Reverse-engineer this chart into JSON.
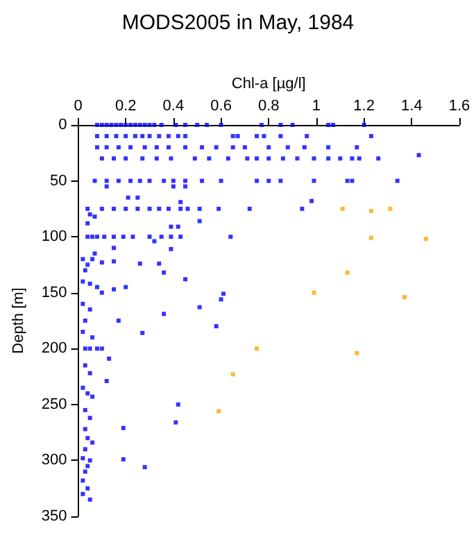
{
  "chart_data": {
    "type": "scatter",
    "title": "MODS2005 in May, 1984",
    "xlabel": "Chl-a [µg/l]",
    "ylabel": "Depth [m]",
    "xlim": [
      0,
      1.6
    ],
    "xticks": [
      0,
      0.2,
      0.4,
      0.6,
      0.8,
      1,
      1.2,
      1.4,
      1.6
    ],
    "ylim": [
      350,
      0
    ],
    "yticks": [
      0,
      50,
      100,
      150,
      200,
      250,
      300,
      350
    ],
    "marker": "square",
    "grid": false,
    "series": [
      {
        "color": "#0000ff",
        "x": [
          0.08,
          0.1,
          0.12,
          0.14,
          0.16,
          0.18,
          0.2,
          0.22,
          0.24,
          0.26,
          0.28,
          0.3,
          0.32,
          0.35,
          0.41,
          0.45,
          0.5,
          0.54,
          0.6,
          0.77,
          0.85,
          0.9,
          1.05,
          1.07,
          1.2,
          0.08,
          0.12,
          0.16,
          0.2,
          0.24,
          0.27,
          0.3,
          0.34,
          0.38,
          0.42,
          0.45,
          0.65,
          0.67,
          0.75,
          0.78,
          0.85,
          0.96,
          1.23,
          0.08,
          0.12,
          0.17,
          0.22,
          0.28,
          0.33,
          0.38,
          0.45,
          0.52,
          0.58,
          0.65,
          0.7,
          0.8,
          0.88,
          0.95,
          1.05,
          1.17,
          0.1,
          0.15,
          0.2,
          0.27,
          0.33,
          0.39,
          0.49,
          0.55,
          0.63,
          0.71,
          0.75,
          0.8,
          0.86,
          0.92,
          0.99,
          1.05,
          1.1,
          1.15,
          1.18,
          1.26,
          1.43,
          0.07,
          0.12,
          0.17,
          0.22,
          0.26,
          0.3,
          0.36,
          0.4,
          0.45,
          0.52,
          0.6,
          0.75,
          0.8,
          0.85,
          0.99,
          1.13,
          1.15,
          1.34,
          0.12,
          0.4,
          0.45,
          0.04,
          0.1,
          0.15,
          0.2,
          0.25,
          0.3,
          0.34,
          0.38,
          0.43,
          0.46,
          0.51,
          0.59,
          0.72,
          0.94,
          0.98,
          0.21,
          0.25,
          0.43,
          0.05,
          0.07,
          0.04,
          0.51,
          0.39,
          0.42,
          0.04,
          0.06,
          0.08,
          0.11,
          0.15,
          0.19,
          0.23,
          0.3,
          0.35,
          0.39,
          0.43,
          0.64,
          0.32,
          0.39,
          0.15,
          0.07,
          0.02,
          0.04,
          0.06,
          0.1,
          0.15,
          0.26,
          0.34,
          0.36,
          0.03,
          0.02,
          0.05,
          0.08,
          0.1,
          0.15,
          0.2,
          0.45,
          0.61,
          0.6,
          0.51,
          0.36,
          0.17,
          0.58,
          0.27,
          0.02,
          0.05,
          0.03,
          0.02,
          0.06,
          0.03,
          0.05,
          0.08,
          0.1,
          0.13,
          0.03,
          0.05,
          0.12,
          0.02,
          0.04,
          0.06,
          0.42,
          0.03,
          0.05,
          0.41,
          0.19,
          0.03,
          0.04,
          0.06,
          0.03,
          0.02,
          0.05,
          0.19,
          0.28,
          0.04,
          0.03,
          0.02,
          0.04,
          0.02,
          0.05
        ],
        "values": [
          0,
          0,
          0,
          0,
          0,
          0,
          0,
          0,
          0,
          0,
          0,
          0,
          0,
          0,
          0,
          0,
          0,
          0,
          0,
          0,
          0,
          0,
          0,
          0,
          0,
          10,
          10,
          10,
          10,
          10,
          10,
          10,
          10,
          10,
          10,
          10,
          10,
          10,
          10,
          10,
          10,
          10,
          10,
          20,
          20,
          20,
          20,
          20,
          20,
          20,
          20,
          20,
          20,
          20,
          20,
          20,
          20,
          20,
          20,
          20,
          30,
          30,
          30,
          30,
          30,
          30,
          30,
          30,
          30,
          30,
          30,
          30,
          30,
          30,
          30,
          30,
          30,
          30,
          30,
          30,
          27,
          50,
          50,
          50,
          50,
          50,
          50,
          50,
          50,
          50,
          50,
          50,
          50,
          50,
          50,
          50,
          50,
          50,
          50,
          55,
          55,
          55,
          75,
          75,
          75,
          75,
          75,
          75,
          75,
          75,
          75,
          75,
          75,
          75,
          75,
          75,
          68,
          65,
          65,
          69,
          80,
          82,
          88,
          86,
          91,
          91,
          100,
          100,
          100,
          100,
          100,
          100,
          100,
          100,
          100,
          100,
          100,
          100,
          104,
          111,
          110,
          115,
          120,
          125,
          120,
          123,
          122,
          124,
          124,
          132,
          130,
          140,
          142,
          145,
          150,
          147,
          145,
          138,
          151,
          156,
          163,
          169,
          175,
          180,
          186,
          160,
          165,
          175,
          185,
          190,
          200,
          200,
          200,
          200,
          209,
          215,
          222,
          229,
          235,
          240,
          243,
          250,
          255,
          262,
          266,
          271,
          272,
          280,
          284,
          290,
          298,
          300,
          299,
          306,
          305,
          310,
          318,
          325,
          330,
          335
        ]
      },
      {
        "color": "#ffa500",
        "x": [
          1.11,
          1.23,
          1.31,
          1.23,
          1.46,
          1.13,
          0.99,
          1.37,
          0.75,
          1.17,
          0.65,
          0.59
        ],
        "values": [
          75,
          77,
          75,
          101,
          102,
          132,
          150,
          154,
          200,
          204,
          223,
          256
        ]
      }
    ]
  }
}
